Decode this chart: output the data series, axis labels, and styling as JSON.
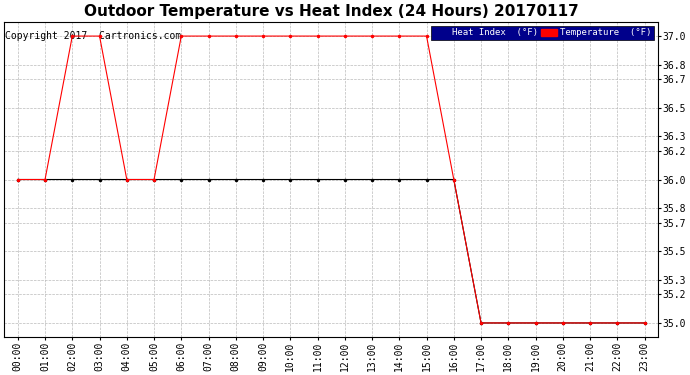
{
  "title": "Outdoor Temperature vs Heat Index (24 Hours) 20170117",
  "copyright_text": "Copyright 2017  Cartronics.com",
  "ylim": [
    34.9,
    37.1
  ],
  "yticks": [
    35.0,
    35.2,
    35.3,
    35.5,
    35.7,
    35.8,
    36.0,
    36.2,
    36.3,
    36.5,
    36.7,
    36.8,
    37.0
  ],
  "bg_color": "#ffffff",
  "plot_bg_color": "#ffffff",
  "hours": [
    "00:00",
    "01:00",
    "02:00",
    "03:00",
    "04:00",
    "05:00",
    "06:00",
    "07:00",
    "08:00",
    "09:00",
    "10:00",
    "11:00",
    "12:00",
    "13:00",
    "14:00",
    "15:00",
    "16:00",
    "17:00",
    "18:00",
    "19:00",
    "20:00",
    "21:00",
    "22:00",
    "23:00"
  ],
  "temperature": [
    36.0,
    36.0,
    37.0,
    37.0,
    36.0,
    36.0,
    37.0,
    37.0,
    37.0,
    37.0,
    37.0,
    37.0,
    37.0,
    37.0,
    37.0,
    37.0,
    36.0,
    35.0,
    35.0,
    35.0,
    35.0,
    35.0,
    35.0,
    35.0
  ],
  "heat_index": [
    36.0,
    36.0,
    36.0,
    36.0,
    36.0,
    36.0,
    36.0,
    36.0,
    36.0,
    36.0,
    36.0,
    36.0,
    36.0,
    36.0,
    36.0,
    36.0,
    36.0,
    35.0,
    35.0,
    35.0,
    35.0,
    35.0,
    35.0,
    35.0
  ],
  "temp_color": "#ff0000",
  "heat_color": "#000000",
  "legend_heat_bg": "#00008b",
  "legend_temp_bg": "#ff0000",
  "legend_text_color": "#ffffff",
  "grid_color": "#bbbbbb",
  "title_fontsize": 11,
  "tick_fontsize": 7,
  "copyright_fontsize": 7
}
